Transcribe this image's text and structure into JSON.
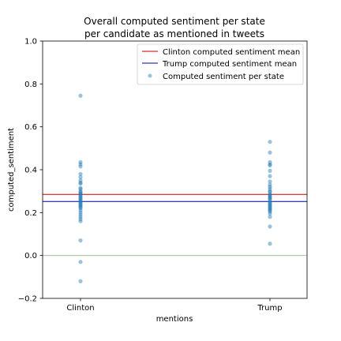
{
  "chart_data": {
    "type": "scatter",
    "title_lines": [
      "Overall computed sentiment per state",
      "per candidate as mentioned in tweets"
    ],
    "xlabel": "mentions",
    "ylabel": "computed_sentiment",
    "categories": [
      "Clinton",
      "Trump"
    ],
    "ylim": [
      -0.2,
      1.0
    ],
    "yticks": [
      "−0.2",
      "0.0",
      "0.2",
      "0.4",
      "0.6",
      "0.8",
      "1.0"
    ],
    "ytick_values": [
      -0.2,
      0.0,
      0.2,
      0.4,
      0.6,
      0.8,
      1.0
    ],
    "grid": false,
    "legend_position": "top-right",
    "reference_line": {
      "y": 0.0,
      "color": "#8fbc8f"
    },
    "mean_lines": [
      {
        "name": "Clinton computed sentiment mean",
        "y": 0.285,
        "color": "#cc0000"
      },
      {
        "name": "Trump computed sentiment mean",
        "y": 0.252,
        "color": "#0000aa"
      }
    ],
    "scatter_series": {
      "name": "Computed sentiment per state",
      "color": "#1f77b4",
      "points": {
        "Clinton": [
          0.745,
          0.435,
          0.425,
          0.415,
          0.38,
          0.365,
          0.35,
          0.34,
          0.335,
          0.315,
          0.31,
          0.3,
          0.295,
          0.29,
          0.285,
          0.28,
          0.275,
          0.27,
          0.265,
          0.26,
          0.255,
          0.25,
          0.245,
          0.24,
          0.235,
          0.23,
          0.225,
          0.22,
          0.21,
          0.2,
          0.19,
          0.18,
          0.17,
          0.16,
          0.07,
          -0.03,
          -0.12
        ],
        "Trump": [
          0.53,
          0.48,
          0.435,
          0.425,
          0.42,
          0.395,
          0.37,
          0.345,
          0.33,
          0.32,
          0.31,
          0.3,
          0.295,
          0.285,
          0.28,
          0.275,
          0.27,
          0.265,
          0.26,
          0.25,
          0.245,
          0.24,
          0.235,
          0.23,
          0.225,
          0.22,
          0.215,
          0.21,
          0.205,
          0.195,
          0.18,
          0.135,
          0.055
        ]
      }
    }
  }
}
